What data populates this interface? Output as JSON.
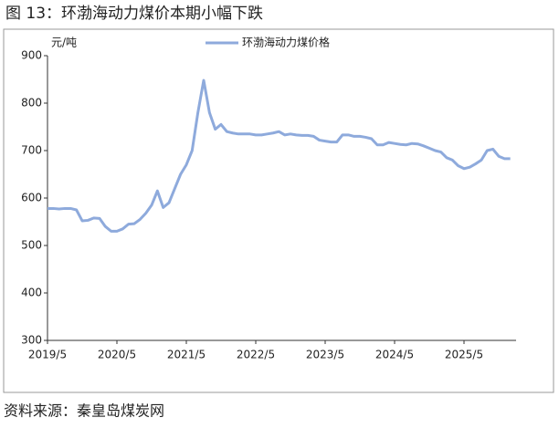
{
  "chart_data": {
    "type": "line",
    "title": "图 13：环渤海动力煤价本期小幅下跌",
    "y_label": "元/吨",
    "source": "资料来源：秦皇岛煤炭网",
    "x": [
      "2019/5",
      "2019/6",
      "2019/7",
      "2019/8",
      "2019/9",
      "2019/10",
      "2019/11",
      "2019/12",
      "2020/1",
      "2020/2",
      "2020/3",
      "2020/4",
      "2020/5",
      "2020/6",
      "2020/7",
      "2020/8",
      "2020/9",
      "2020/10",
      "2020/11",
      "2020/12",
      "2021/1",
      "2021/2",
      "2021/3",
      "2021/4",
      "2021/5",
      "2021/6",
      "2021/7",
      "2021/8",
      "2021/9",
      "2021/10",
      "2021/11",
      "2021/12",
      "2022/1",
      "2022/2",
      "2022/3",
      "2022/4",
      "2022/5",
      "2022/6",
      "2022/7",
      "2022/8",
      "2022/9",
      "2022/10",
      "2022/11",
      "2022/12",
      "2023/1",
      "2023/2",
      "2023/3",
      "2023/4",
      "2023/5",
      "2023/6",
      "2023/7",
      "2023/8",
      "2023/9",
      "2023/10",
      "2023/11",
      "2023/12",
      "2024/1",
      "2024/2",
      "2024/3",
      "2024/4",
      "2024/5",
      "2024/6",
      "2024/7",
      "2024/8",
      "2024/9",
      "2024/10",
      "2024/11",
      "2024/12",
      "2025/1",
      "2025/2",
      "2025/3",
      "2025/4",
      "2025/5",
      "2025/6",
      "2025/7",
      "2025/8",
      "2025/9",
      "2025/10",
      "2025/11",
      "2025/12",
      "2026/1"
    ],
    "series": [
      {
        "name": "环渤海动力煤价格",
        "color": "#8eaadc",
        "values": [
          578,
          578,
          577,
          578,
          578,
          575,
          552,
          553,
          558,
          557,
          540,
          530,
          530,
          535,
          545,
          546,
          555,
          568,
          585,
          615,
          580,
          590,
          620,
          650,
          670,
          700,
          780,
          848,
          780,
          745,
          755,
          740,
          737,
          735,
          735,
          735,
          733,
          733,
          735,
          737,
          740,
          733,
          735,
          733,
          732,
          732,
          730,
          722,
          720,
          718,
          718,
          733,
          733,
          730,
          730,
          728,
          725,
          712,
          712,
          717,
          715,
          713,
          712,
          715,
          714,
          710,
          705,
          700,
          697,
          685,
          680,
          668,
          662,
          665,
          672,
          680,
          700,
          703,
          688,
          683,
          683
        ]
      }
    ],
    "xlim": [
      "2019/5",
      "2026/2"
    ],
    "xticks": [
      "2019/5",
      "2020/5",
      "2021/5",
      "2022/5",
      "2023/5",
      "2024/5",
      "2025/5"
    ],
    "ylim": [
      300,
      900
    ],
    "yticks": [
      300,
      400,
      500,
      600,
      700,
      800,
      900
    ],
    "grid": false,
    "legend": "top"
  }
}
